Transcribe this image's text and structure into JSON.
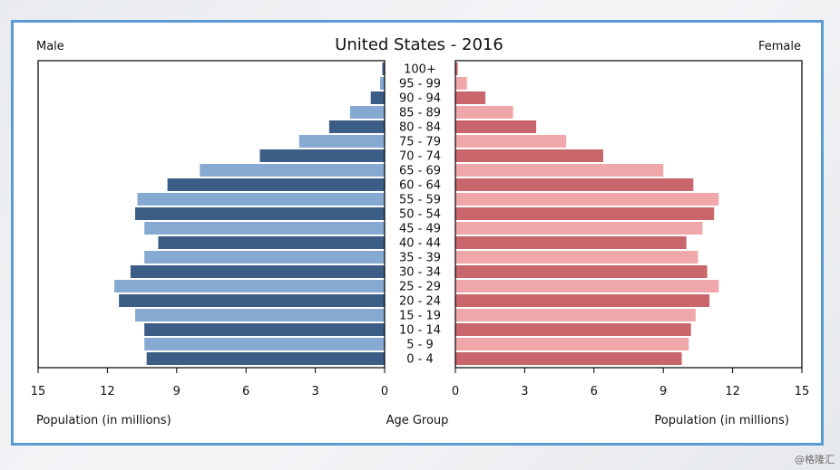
{
  "chart_data": {
    "type": "bar",
    "title": "United States - 2016",
    "left_label": "Male",
    "right_label": "Female",
    "center_xlabel": "Age Group",
    "xlabel_left": "Population (in millions)",
    "xlabel_right": "Population (in millions)",
    "xlim": [
      0,
      15
    ],
    "ticks": [
      0,
      3,
      6,
      9,
      12,
      15
    ],
    "categories": [
      "100+",
      "95 - 99",
      "90 - 94",
      "85 - 89",
      "80 - 84",
      "75 - 79",
      "70 - 74",
      "65 - 69",
      "60 - 64",
      "55 - 59",
      "50 - 54",
      "45 - 49",
      "40 - 44",
      "35 - 39",
      "30 - 34",
      "25 - 29",
      "20 - 24",
      "15 - 19",
      "10 - 14",
      "5 - 9",
      "0 - 4"
    ],
    "series": [
      {
        "name": "Male",
        "values": [
          0.1,
          0.2,
          0.6,
          1.5,
          2.4,
          3.7,
          5.4,
          8.0,
          9.4,
          10.7,
          10.8,
          10.4,
          9.8,
          10.4,
          11.0,
          11.7,
          11.5,
          10.8,
          10.4,
          10.4,
          10.3
        ]
      },
      {
        "name": "Female",
        "values": [
          0.1,
          0.5,
          1.3,
          2.5,
          3.5,
          4.8,
          6.4,
          9.0,
          10.3,
          11.4,
          11.2,
          10.7,
          10.0,
          10.5,
          10.9,
          11.4,
          11.0,
          10.4,
          10.2,
          10.1,
          9.8
        ]
      }
    ],
    "colors": {
      "male_dark": "#3b5d86",
      "male_light": "#86a9d1",
      "female_dark": "#c8666b",
      "female_light": "#f0a7a9"
    },
    "grid": false
  }
}
